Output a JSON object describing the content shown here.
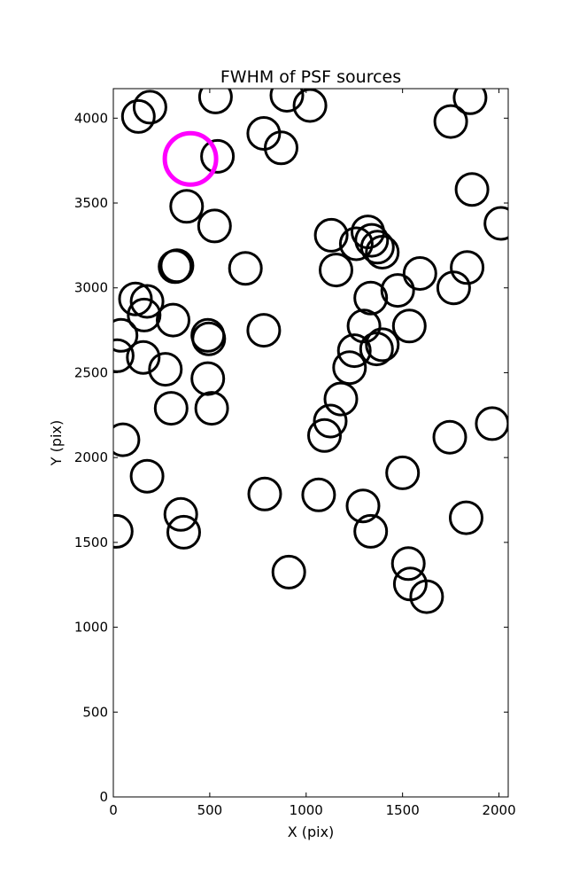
{
  "chart_data": {
    "type": "scatter",
    "title": "FWHM of PSF sources",
    "xlabel": "X (pix)",
    "ylabel": "Y (pix)",
    "xlim": [
      0,
      2048
    ],
    "ylim": [
      0,
      4174
    ],
    "xticks": [
      0,
      500,
      1000,
      1500,
      2000
    ],
    "yticks": [
      0,
      500,
      1000,
      1500,
      2000,
      2500,
      3000,
      3500,
      4000
    ],
    "grid": false,
    "marker": "open circle",
    "highlight_color": "#ff00ff",
    "series": [
      {
        "color": "#000000",
        "points": [
          [
            130,
            4010
          ],
          [
            190,
            4065
          ],
          [
            530,
            4125
          ],
          [
            780,
            3910
          ],
          [
            870,
            3825
          ],
          [
            900,
            4135
          ],
          [
            1020,
            4075
          ],
          [
            1850,
            4120
          ],
          [
            1750,
            3980
          ],
          [
            540,
            3775
          ],
          [
            380,
            3480
          ],
          [
            525,
            3365
          ],
          [
            1860,
            3580
          ],
          [
            2010,
            3380
          ],
          [
            320,
            3125
          ],
          [
            330,
            3130
          ],
          [
            685,
            3115
          ],
          [
            1130,
            3310
          ],
          [
            1155,
            3105
          ],
          [
            1260,
            3260
          ],
          [
            1320,
            3330
          ],
          [
            1340,
            3280
          ],
          [
            1370,
            3240
          ],
          [
            1395,
            3210
          ],
          [
            1590,
            3085
          ],
          [
            1835,
            3120
          ],
          [
            1765,
            3000
          ],
          [
            1475,
            2985
          ],
          [
            115,
            2935
          ],
          [
            175,
            2920
          ],
          [
            160,
            2840
          ],
          [
            310,
            2810
          ],
          [
            40,
            2720
          ],
          [
            490,
            2720
          ],
          [
            495,
            2700
          ],
          [
            780,
            2750
          ],
          [
            1300,
            2775
          ],
          [
            1335,
            2940
          ],
          [
            1535,
            2775
          ],
          [
            20,
            2600
          ],
          [
            155,
            2590
          ],
          [
            270,
            2520
          ],
          [
            490,
            2465
          ],
          [
            1225,
            2530
          ],
          [
            1250,
            2630
          ],
          [
            1365,
            2640
          ],
          [
            1395,
            2665
          ],
          [
            300,
            2290
          ],
          [
            510,
            2290
          ],
          [
            1180,
            2345
          ],
          [
            1125,
            2215
          ],
          [
            1095,
            2130
          ],
          [
            1745,
            2120
          ],
          [
            1965,
            2200
          ],
          [
            50,
            2105
          ],
          [
            175,
            1890
          ],
          [
            1500,
            1910
          ],
          [
            785,
            1785
          ],
          [
            1065,
            1780
          ],
          [
            1295,
            1715
          ],
          [
            1335,
            1565
          ],
          [
            1830,
            1645
          ],
          [
            350,
            1665
          ],
          [
            365,
            1560
          ],
          [
            15,
            1565
          ],
          [
            910,
            1325
          ],
          [
            1530,
            1375
          ],
          [
            1540,
            1255
          ],
          [
            1625,
            1180
          ]
        ]
      },
      {
        "color": "#ff00ff",
        "points": [
          [
            400,
            3760
          ]
        ]
      }
    ]
  }
}
